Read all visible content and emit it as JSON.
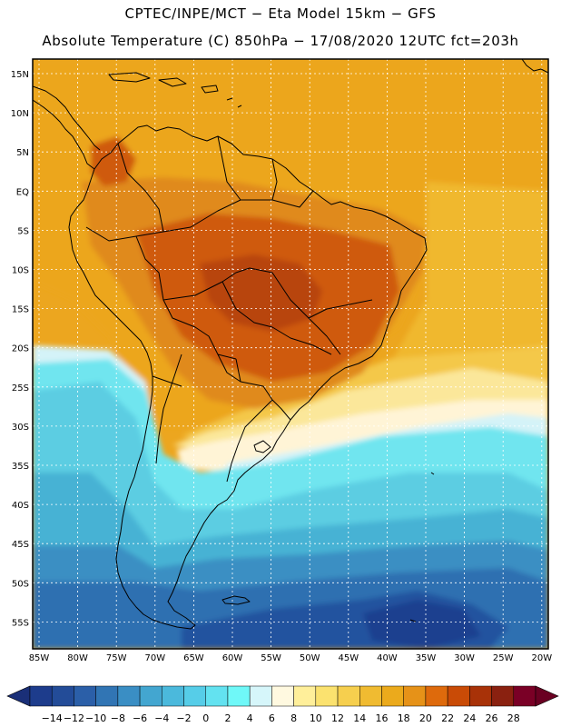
{
  "title_line1": "CPTEC/INPE/MCT  −  Eta Model 15km − GFS",
  "title_line2": "Absolute Temperature (C) 850hPa − 17/08/2020 12UTC fct=203h",
  "lat_labels": [
    "15N",
    "10N",
    "5N",
    "EQ",
    "5S",
    "10S",
    "15S",
    "20S",
    "25S",
    "30S",
    "35S",
    "40S",
    "45S",
    "50S",
    "55S"
  ],
  "lon_labels": [
    "85W",
    "80W",
    "75W",
    "70W",
    "65W",
    "60W",
    "55W",
    "50W",
    "45W",
    "40W",
    "35W",
    "30W",
    "25W",
    "20W"
  ],
  "colorbar": {
    "labels": [
      "−14",
      "−12",
      "−10",
      "−8",
      "−6",
      "−4",
      "−2",
      "0",
      "2",
      "4",
      "6",
      "8",
      "10",
      "12",
      "14",
      "16",
      "18",
      "20",
      "22",
      "24",
      "26",
      "28"
    ],
    "colors": [
      "#1d3c8c",
      "#234c98",
      "#2b5fa8",
      "#3175b4",
      "#3a8ec4",
      "#43a6d0",
      "#4bb9dc",
      "#56cde8",
      "#63e2f0",
      "#6ff8f8",
      "#d6f6fa",
      "#fff9e0",
      "#ffef9a",
      "#fbe26f",
      "#f6cf4e",
      "#f0bb31",
      "#ebaa1c",
      "#e69218",
      "#de6a0c",
      "#c94b06",
      "#a83208",
      "#8a2110",
      "#7a0026"
    ],
    "end_low_color": "#1a2f78",
    "end_high_color": "#6a0022"
  },
  "map_colors": {
    "dark_red": "#b84508",
    "red": "#cf5a0c",
    "orange": "#e08a1a",
    "amber": "#eca61f",
    "yellow_orange": "#f0b82f",
    "yellow": "#f4c84a",
    "pale_yellow": "#fbe79a",
    "cream": "#fff4d6",
    "pale_blue": "#d4f3f8",
    "cyan": "#6fe5ef",
    "light_blue": "#5ccde2",
    "mid_blue": "#47b2d4",
    "blue": "#3b8fc3",
    "deep_blue": "#2d6fb1",
    "navy": "#24529f",
    "dark_navy": "#1f3f8f",
    "coastline": "#000000",
    "grid": "#ffffff"
  }
}
